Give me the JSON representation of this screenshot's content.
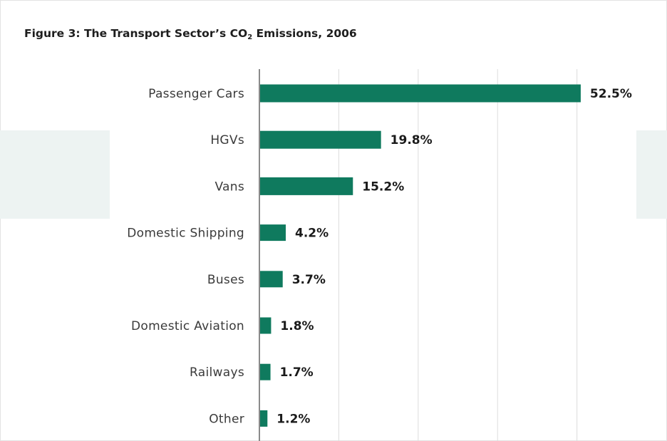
{
  "title": {
    "prefix": "Figure 3: The Transport Sector’s CO",
    "subscript": "2",
    "suffix": " Emissions, 2006"
  },
  "colors": {
    "bar": "#0f7a5e",
    "grid": "#dcdcdc",
    "axis": "#8a8a8a"
  },
  "chart_data": {
    "type": "bar",
    "orientation": "horizontal",
    "title": "Figure 3: The Transport Sector’s CO2 Emissions, 2006",
    "xlabel": "",
    "ylabel": "",
    "xlim": [
      0,
      60
    ],
    "grid": true,
    "value_suffix": "%",
    "categories": [
      "Passenger Cars",
      "HGVs",
      "Vans",
      "Domestic Shipping",
      "Buses",
      "Domestic Aviation",
      "Railways",
      "Other"
    ],
    "values": [
      52.5,
      19.8,
      15.2,
      4.2,
      3.7,
      1.8,
      1.7,
      1.2
    ],
    "data_labels": [
      "52.5%",
      "19.8%",
      "15.2%",
      "4.2%",
      "3.7%",
      "1.8%",
      "1.7%",
      "1.2%"
    ]
  }
}
